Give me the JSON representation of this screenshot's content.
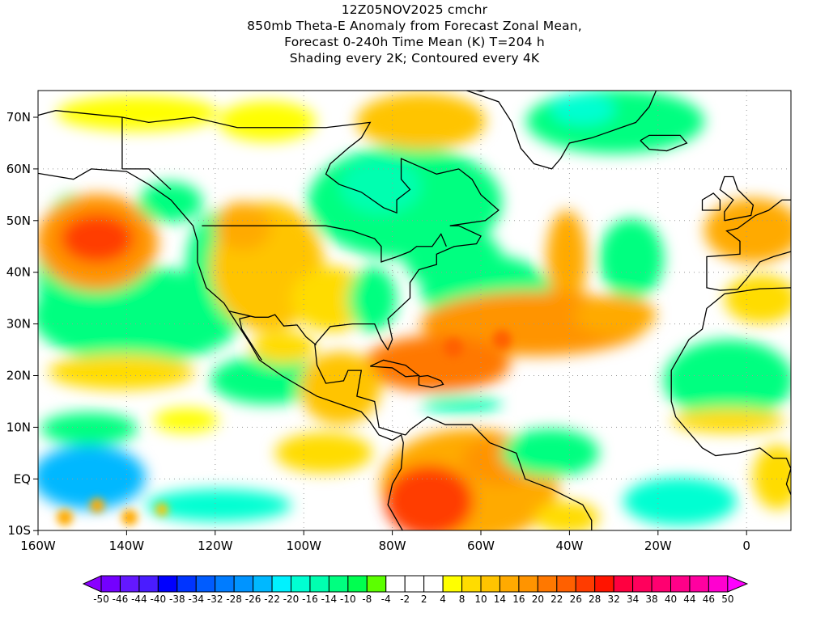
{
  "title": {
    "line1": "12Z05NOV2025 cmchr",
    "line2": "850mb Theta-E Anomaly from Forecast Zonal Mean,",
    "line3": "Forecast 0-240h Time Mean (K) T=204 h",
    "line4": "Shading every 2K; Contoured every 4K"
  },
  "axes": {
    "lon_labels": [
      "160W",
      "140W",
      "120W",
      "100W",
      "80W",
      "60W",
      "40W",
      "20W",
      "0"
    ],
    "lat_labels": [
      "70N",
      "60N",
      "50N",
      "40N",
      "30N",
      "20N",
      "10N",
      "EQ",
      "10S"
    ]
  },
  "colorbar": {
    "labels": [
      "-50",
      "-46",
      "-44",
      "-40",
      "-38",
      "-34",
      "-32",
      "-28",
      "-26",
      "-22",
      "-20",
      "-16",
      "-14",
      "-10",
      "-8",
      "-4",
      "-2",
      "2",
      "4",
      "8",
      "10",
      "14",
      "16",
      "20",
      "22",
      "26",
      "28",
      "32",
      "34",
      "38",
      "40",
      "44",
      "46",
      "50"
    ],
    "colors": [
      "#7400ff",
      "#6418ff",
      "#4a1cff",
      "#0000ff",
      "#0034ff",
      "#005cff",
      "#007cff",
      "#0094ff",
      "#00b8ff",
      "#00f2ff",
      "#00ffd2",
      "#00ffb0",
      "#00ff80",
      "#00ff50",
      "#5cff00",
      "#ffffff",
      "#ffffff",
      "#ffffff",
      "#ffff00",
      "#ffdc00",
      "#ffc400",
      "#ffaa00",
      "#ff9400",
      "#ff7800",
      "#ff6000",
      "#ff3c00",
      "#ff1400",
      "#ff0040",
      "#ff005c",
      "#ff0070",
      "#ff0088",
      "#ff00a0",
      "#ff00d0"
    ],
    "low_color": "#8a00ff",
    "high_color": "#ff00ff"
  }
}
